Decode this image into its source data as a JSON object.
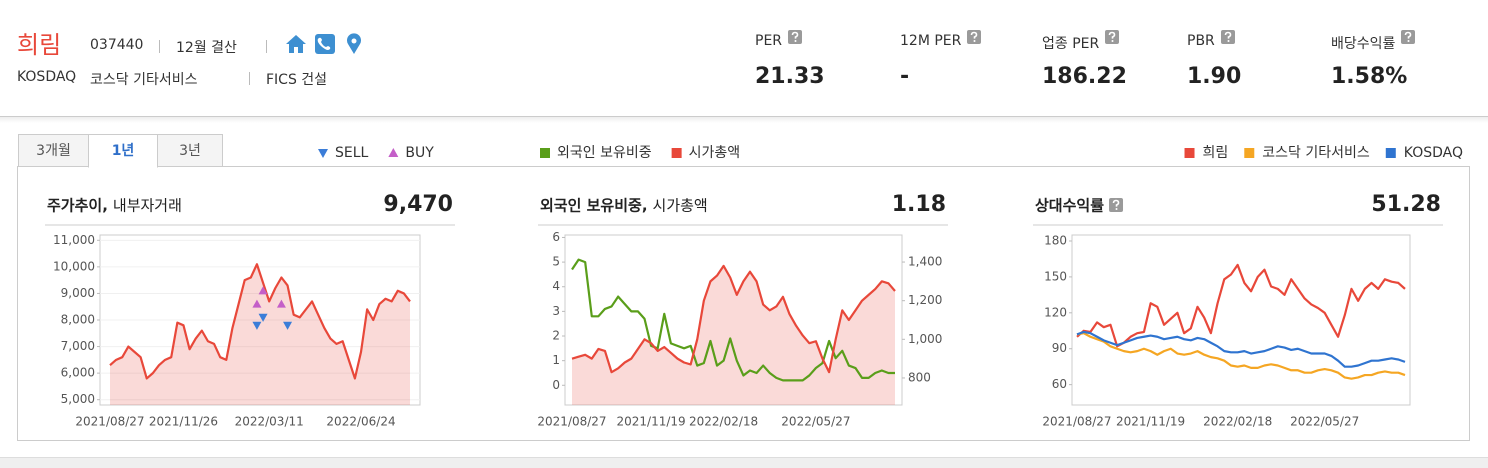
{
  "header": {
    "name": "희림",
    "code": "037440",
    "fiscal": "12월 결산",
    "market": "KOSDAQ",
    "industry": "코스닥 기타서비스",
    "fics": "FICS 건설"
  },
  "metrics": [
    {
      "label": "PER",
      "value": "21.33"
    },
    {
      "label": "12M PER",
      "value": "-"
    },
    {
      "label": "업종 PER",
      "value": "186.22"
    },
    {
      "label": "PBR",
      "value": "1.90"
    },
    {
      "label": "배당수익률",
      "value": "1.58%"
    }
  ],
  "tabs": [
    "3개월",
    "1년",
    "3년"
  ],
  "active_tab": 1,
  "chart_data": [
    {
      "type": "line",
      "title": "주가추이,",
      "subtitle": "내부자거래",
      "headline": "9,470",
      "grid": true,
      "legend": "top-left",
      "categories": [
        "2021/08/27",
        null,
        null,
        null,
        null,
        null,
        null,
        null,
        null,
        null,
        null,
        null,
        "2021/11/26",
        null,
        null,
        null,
        null,
        null,
        null,
        null,
        null,
        null,
        null,
        null,
        null,
        null,
        "2022/03/11",
        null,
        null,
        null,
        null,
        null,
        null,
        null,
        null,
        null,
        null,
        null,
        null,
        null,
        null,
        "2022/06/24",
        null,
        null,
        null,
        null,
        null,
        null,
        null,
        null
      ],
      "ylim": [
        4800,
        11200
      ],
      "yticks": [
        {
          "value": 5000,
          "label": "5,000"
        },
        {
          "value": 6000,
          "label": "6,000"
        },
        {
          "value": 7000,
          "label": "7,000"
        },
        {
          "value": 8000,
          "label": "8,000"
        },
        {
          "value": 9000,
          "label": "9,000"
        },
        {
          "value": 10000,
          "label": "10,000"
        },
        {
          "value": 11000,
          "label": "11,000"
        }
      ],
      "series": [
        {
          "color": "#e8483a",
          "fill": true,
          "values": [
            6300,
            6500,
            6600,
            7000,
            6800,
            6600,
            5800,
            6000,
            6300,
            6500,
            6600,
            7900,
            7800,
            6900,
            7300,
            7600,
            7200,
            7100,
            6600,
            6500,
            7700,
            8600,
            9500,
            9600,
            10100,
            9400,
            8700,
            9200,
            9600,
            9300,
            8200,
            8100,
            8400,
            8700,
            8200,
            7700,
            7300,
            7100,
            7200,
            6500,
            5800,
            6800,
            8400,
            8000,
            8600,
            8800,
            8700,
            9100,
            9000,
            8700
          ]
        },
        {
          "name": "SELL",
          "color": "#3b7dd8",
          "marker": "triangle-down",
          "values": [
            null,
            null,
            null,
            null,
            null,
            null,
            null,
            null,
            null,
            null,
            null,
            null,
            null,
            null,
            null,
            null,
            null,
            null,
            null,
            null,
            null,
            null,
            null,
            null,
            7800,
            8100,
            null,
            null,
            null,
            7800,
            null,
            null,
            null,
            null,
            null,
            null,
            null,
            null,
            null,
            null,
            null,
            null,
            null,
            null,
            null,
            null,
            null,
            null,
            null,
            null
          ]
        },
        {
          "name": "BUY",
          "color": "#c45fc8",
          "marker": "triangle-up",
          "values": [
            null,
            null,
            null,
            null,
            null,
            null,
            null,
            null,
            null,
            null,
            null,
            null,
            null,
            null,
            null,
            null,
            null,
            null,
            null,
            null,
            null,
            null,
            null,
            null,
            8600,
            9100,
            null,
            null,
            8600,
            null,
            null,
            null,
            null,
            null,
            null,
            null,
            null,
            null,
            null,
            null,
            null,
            null,
            null,
            null,
            null,
            null,
            null,
            null,
            null,
            null
          ]
        }
      ]
    },
    {
      "type": "line",
      "title": "외국인 보유비중,",
      "subtitle": "시가총액",
      "headline": "1.18",
      "grid": false,
      "legend": "top-left",
      "categories": [
        "2021/08/27",
        null,
        null,
        null,
        null,
        null,
        null,
        null,
        null,
        null,
        null,
        null,
        "2021/11/19",
        null,
        null,
        null,
        null,
        null,
        null,
        null,
        null,
        null,
        null,
        "2022/02/18",
        null,
        null,
        null,
        null,
        null,
        null,
        null,
        null,
        null,
        null,
        null,
        null,
        null,
        "2022/05/27",
        null,
        null,
        null,
        null,
        null,
        null,
        null,
        null,
        null,
        null,
        null,
        null
      ],
      "ylim": [
        -0.8,
        6.1
      ],
      "yticks": [
        0,
        1,
        2,
        3,
        4,
        5,
        6
      ],
      "y2lim": [
        660,
        1540
      ],
      "y2ticks": [
        800,
        {
          "value": 1000,
          "label": "1,000"
        },
        {
          "value": 1200,
          "label": "1,200"
        },
        {
          "value": 1400,
          "label": "1,400"
        }
      ],
      "series": [
        {
          "name": "외국인 보유비중",
          "color": "#5a9e1a",
          "values": [
            4.7,
            5.1,
            5.0,
            2.8,
            2.8,
            3.1,
            3.2,
            3.6,
            3.3,
            3.0,
            3.0,
            2.7,
            1.6,
            1.5,
            2.9,
            1.7,
            1.6,
            1.5,
            1.6,
            0.8,
            0.9,
            1.8,
            0.8,
            1.0,
            1.9,
            1.0,
            0.4,
            0.6,
            0.5,
            0.8,
            0.5,
            0.3,
            0.2,
            0.2,
            0.2,
            0.2,
            0.4,
            0.7,
            0.9,
            1.8,
            1.1,
            1.4,
            0.8,
            0.7,
            0.3,
            0.3,
            0.5,
            0.6,
            0.5,
            0.5
          ]
        },
        {
          "name": "시가총액",
          "color": "#e8483a",
          "axis": "y2",
          "fill": true,
          "values": [
            900,
            910,
            920,
            900,
            950,
            940,
            830,
            850,
            880,
            900,
            950,
            1000,
            980,
            940,
            960,
            930,
            900,
            880,
            870,
            1000,
            1200,
            1300,
            1330,
            1380,
            1320,
            1230,
            1300,
            1350,
            1300,
            1180,
            1150,
            1170,
            1220,
            1130,
            1070,
            1020,
            980,
            990,
            900,
            830,
            1000,
            1150,
            1100,
            1150,
            1200,
            1230,
            1260,
            1300,
            1290,
            1250
          ]
        }
      ]
    },
    {
      "type": "line",
      "title": "상대수익률",
      "headline": "51.28",
      "grid": false,
      "legend": "top-right",
      "categories": [
        "2021/08/27",
        null,
        null,
        null,
        null,
        null,
        null,
        null,
        null,
        null,
        null,
        "2021/11/19",
        null,
        null,
        null,
        null,
        null,
        null,
        null,
        null,
        null,
        null,
        null,
        null,
        "2022/02/18",
        null,
        null,
        null,
        null,
        null,
        null,
        null,
        null,
        null,
        null,
        null,
        null,
        "2022/05/27",
        null,
        null,
        null,
        null,
        null,
        null,
        null,
        null,
        null,
        null,
        null,
        null
      ],
      "ylim": [
        43,
        185
      ],
      "yticks": [
        60,
        90,
        120,
        150,
        180
      ],
      "series": [
        {
          "name": "희림",
          "color": "#e8483a",
          "values": [
            100,
            105,
            104,
            112,
            108,
            110,
            92,
            95,
            100,
            103,
            104,
            128,
            125,
            110,
            115,
            120,
            103,
            107,
            125,
            116,
            103,
            128,
            148,
            152,
            160,
            145,
            138,
            150,
            156,
            142,
            140,
            135,
            148,
            140,
            132,
            127,
            124,
            120,
            110,
            100,
            118,
            140,
            130,
            140,
            145,
            140,
            148,
            146,
            145,
            140
          ]
        },
        {
          "name": "코스닥 기타서비스",
          "color": "#f5a623",
          "values": [
            102,
            103,
            100,
            98,
            96,
            92,
            90,
            88,
            87,
            88,
            90,
            88,
            85,
            88,
            90,
            86,
            85,
            86,
            88,
            85,
            83,
            82,
            80,
            76,
            75,
            76,
            74,
            74,
            76,
            77,
            76,
            74,
            72,
            72,
            70,
            70,
            72,
            73,
            72,
            70,
            66,
            65,
            66,
            68,
            68,
            70,
            71,
            70,
            70,
            68
          ]
        },
        {
          "name": "KOSDAQ",
          "color": "#2f74d0",
          "values": [
            102,
            104,
            103,
            100,
            97,
            95,
            93,
            95,
            97,
            99,
            100,
            101,
            100,
            98,
            99,
            100,
            98,
            97,
            99,
            98,
            95,
            92,
            88,
            87,
            87,
            88,
            86,
            87,
            88,
            90,
            92,
            91,
            89,
            90,
            88,
            86,
            86,
            86,
            84,
            80,
            75,
            75,
            76,
            78,
            80,
            80,
            81,
            82,
            81,
            79
          ]
        }
      ]
    }
  ]
}
